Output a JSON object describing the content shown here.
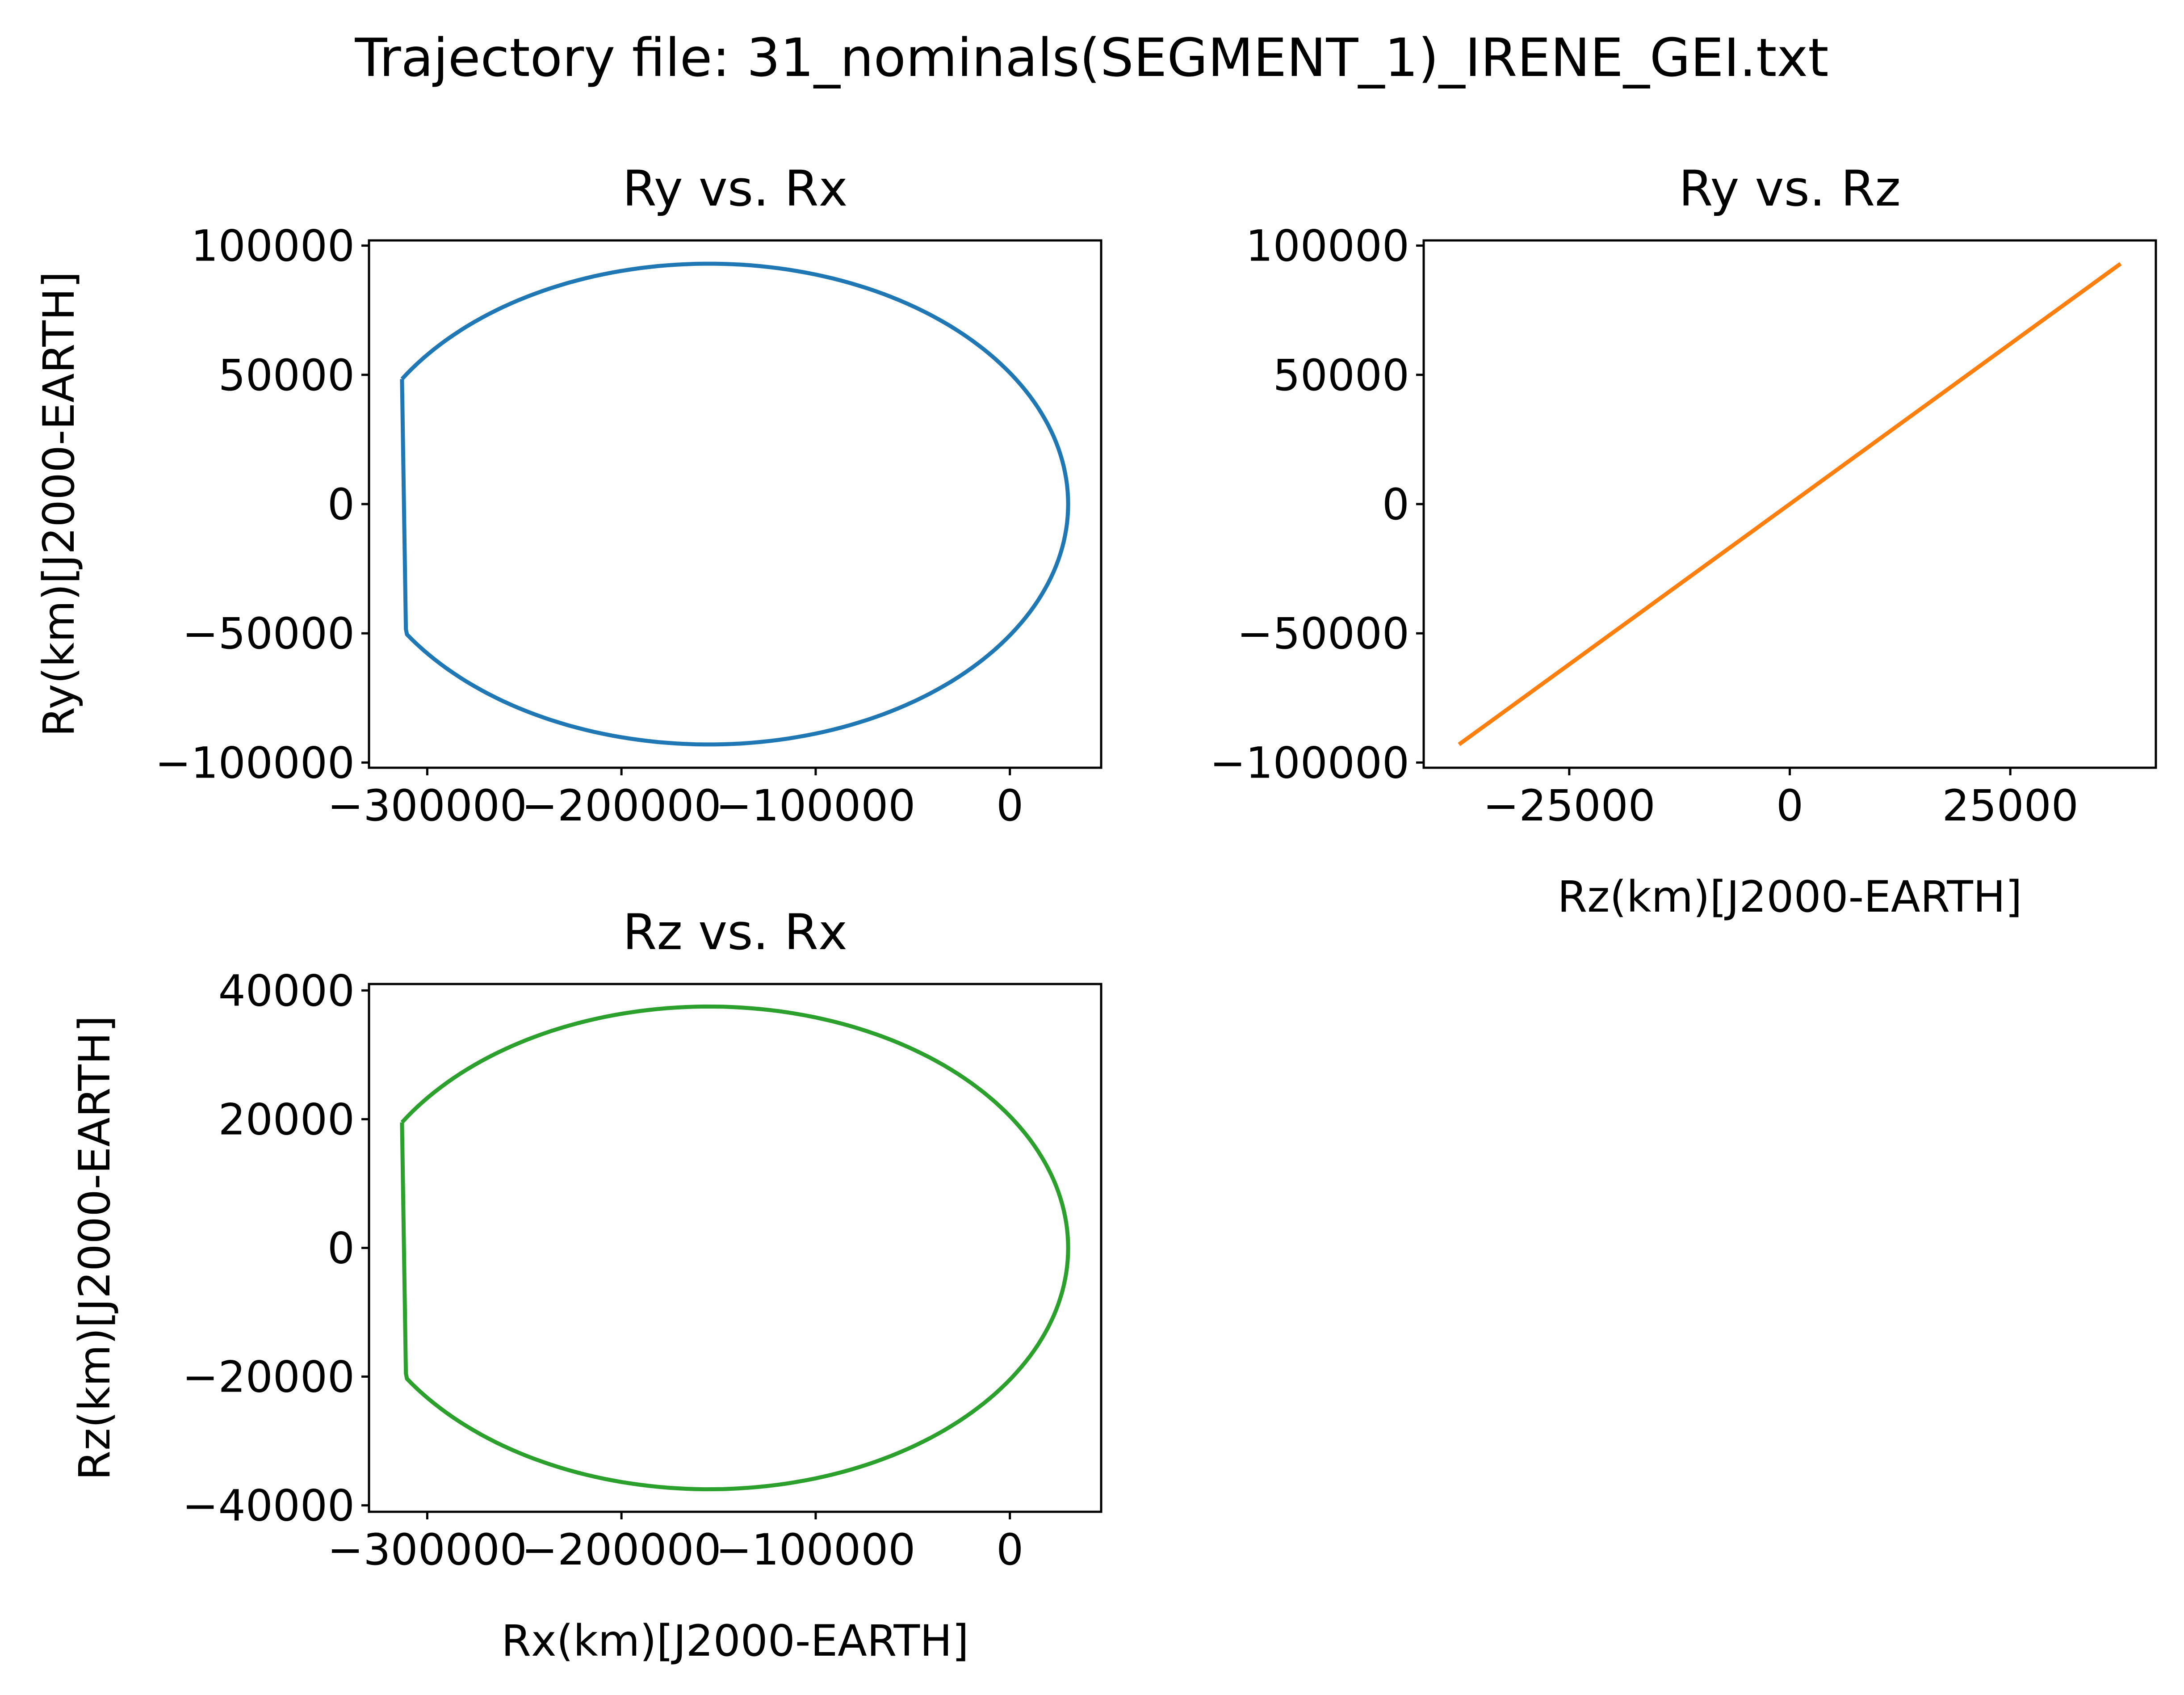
{
  "figure": {
    "title": "Trajectory file: 31_nominals(SEGMENT_1)_IRENE_GEI.txt"
  },
  "chart_data": [
    {
      "id": "ry_rx",
      "type": "line",
      "title": "Ry vs. Rx",
      "xlabel": "",
      "ylabel": "Ry(km)[J2000-EARTH]",
      "xlim": [
        -330000,
        47000
      ],
      "ylim": [
        -102000,
        102000
      ],
      "xticks": [
        -300000,
        -200000,
        -100000,
        0
      ],
      "xtick_labels": [
        "−300000",
        "−200000",
        "−100000",
        "0"
      ],
      "yticks": [
        -100000,
        -50000,
        0,
        50000,
        100000
      ],
      "ytick_labels": [
        "−100000",
        "−50000",
        "0",
        "50000",
        "100000"
      ],
      "color": "#1f77b4",
      "series": [
        {
          "name": "trajectory",
          "shape": "truncated_ellipse",
          "center": [
            -155000,
            0
          ],
          "semi_axes": [
            185000,
            93000
          ],
          "x_cut": -313000,
          "x_cut_end": -311000
        }
      ]
    },
    {
      "id": "ry_rz",
      "type": "line",
      "title": "Ry vs. Rz",
      "xlabel": "Rz(km)[J2000-EARTH]",
      "ylabel": "",
      "xlim": [
        -41500,
        41500
      ],
      "ylim": [
        -102000,
        102000
      ],
      "xticks": [
        -25000,
        0,
        25000
      ],
      "xtick_labels": [
        "−25000",
        "0",
        "25000"
      ],
      "yticks": [
        -100000,
        -50000,
        0,
        50000,
        100000
      ],
      "ytick_labels": [
        "−100000",
        "−50000",
        "0",
        "50000",
        "100000"
      ],
      "color": "#ff7f0e",
      "series": [
        {
          "name": "trajectory",
          "x": [
            -37500,
            37500
          ],
          "y": [
            -93000,
            93000
          ]
        }
      ]
    },
    {
      "id": "rz_rx",
      "type": "line",
      "title": "Rz vs. Rx",
      "xlabel": "Rx(km)[J2000-EARTH]",
      "ylabel": "Rz(km)[J2000-EARTH]",
      "xlim": [
        -330000,
        47000
      ],
      "ylim": [
        -41000,
        41000
      ],
      "xticks": [
        -300000,
        -200000,
        -100000,
        0
      ],
      "xtick_labels": [
        "−300000",
        "−200000",
        "−100000",
        "0"
      ],
      "yticks": [
        -40000,
        -20000,
        0,
        20000,
        40000
      ],
      "ytick_labels": [
        "−40000",
        "−20000",
        "0",
        "20000",
        "40000"
      ],
      "color": "#2ca02c",
      "series": [
        {
          "name": "trajectory",
          "shape": "truncated_ellipse",
          "center": [
            -155000,
            0
          ],
          "semi_axes": [
            185000,
            37500
          ],
          "x_cut": -313000,
          "x_cut_end": -311000
        }
      ]
    }
  ]
}
